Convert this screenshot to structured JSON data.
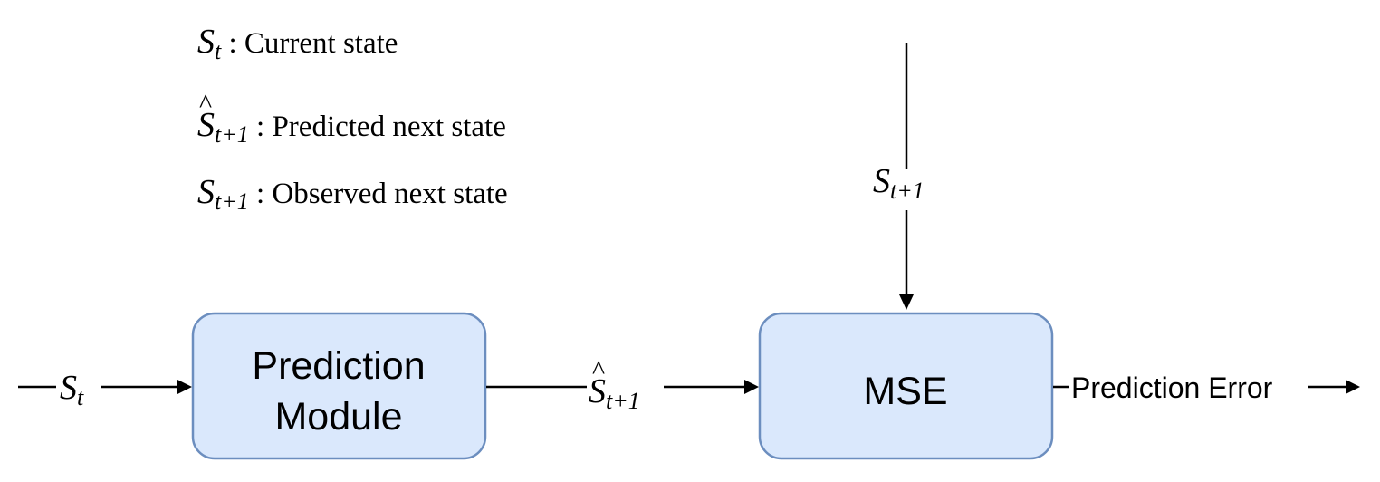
{
  "legend": {
    "items": [
      {
        "symbol": "S",
        "subscript": "t",
        "hat": false,
        "description": "Current state"
      },
      {
        "symbol": "S",
        "subscript": "t+1",
        "hat": true,
        "description": "Predicted next state"
      },
      {
        "symbol": "S",
        "subscript": "t+1",
        "hat": false,
        "description": "Observed next state"
      }
    ]
  },
  "nodes": {
    "prediction_module": {
      "line1": "Prediction",
      "line2": "Module"
    },
    "mse": {
      "label": "MSE"
    }
  },
  "edges": {
    "input": {
      "symbol": "S",
      "subscript": "t"
    },
    "predicted": {
      "symbol": "S",
      "subscript": "t+1"
    },
    "observed": {
      "symbol": "S",
      "subscript": "t+1"
    },
    "output": {
      "label": "Prediction Error"
    }
  },
  "colors": {
    "box_fill": "#dae8fc",
    "box_stroke": "#6c8ebf",
    "line": "#000000"
  }
}
